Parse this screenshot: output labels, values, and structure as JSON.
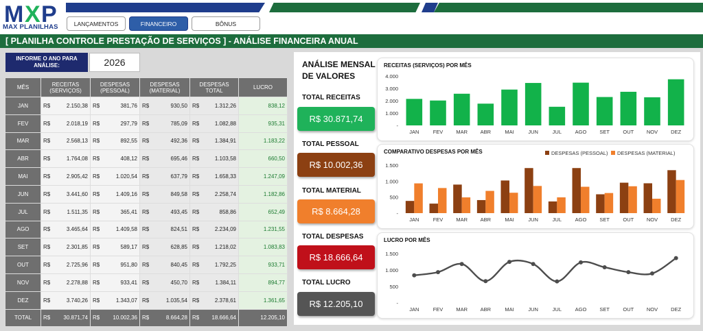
{
  "app": {
    "brand": "MAX PLANILHAS",
    "nav": [
      "LANÇAMENTOS",
      "FINANCEIRO",
      "BÔNUS"
    ],
    "active_nav": 1,
    "title": "[ PLANILHA CONTROLE PRESTAÇÃO DE SERVIÇOS ] - ANÁLISE FINANCEIRA ANUAL"
  },
  "year": {
    "label": "INFORME O ANO PARA ANÁLISE:",
    "value": "2026"
  },
  "table": {
    "headers": [
      "MÊS",
      "RECEITAS (SERVIÇOS)",
      "DESPESAS (PESSOAL)",
      "DESPESAS (MATERIAL)",
      "DESPESAS TOTAL",
      "LUCRO"
    ],
    "currency": "R$",
    "rows": [
      {
        "month": "JAN",
        "receitas": "2.150,38",
        "pessoal": "381,76",
        "material": "930,50",
        "total": "1.312,26",
        "lucro": "838,12"
      },
      {
        "month": "FEV",
        "receitas": "2.018,19",
        "pessoal": "297,79",
        "material": "785,09",
        "total": "1.082,88",
        "lucro": "935,31"
      },
      {
        "month": "MAR",
        "receitas": "2.568,13",
        "pessoal": "892,55",
        "material": "492,36",
        "total": "1.384,91",
        "lucro": "1.183,22"
      },
      {
        "month": "ABR",
        "receitas": "1.764,08",
        "pessoal": "408,12",
        "material": "695,46",
        "total": "1.103,58",
        "lucro": "660,50"
      },
      {
        "month": "MAI",
        "receitas": "2.905,42",
        "pessoal": "1.020,54",
        "material": "637,79",
        "total": "1.658,33",
        "lucro": "1.247,09"
      },
      {
        "month": "JUN",
        "receitas": "3.441,60",
        "pessoal": "1.409,16",
        "material": "849,58",
        "total": "2.258,74",
        "lucro": "1.182,86"
      },
      {
        "month": "JUL",
        "receitas": "1.511,35",
        "pessoal": "365,41",
        "material": "493,45",
        "total": "858,86",
        "lucro": "652,49"
      },
      {
        "month": "AGO",
        "receitas": "3.465,64",
        "pessoal": "1.409,58",
        "material": "824,51",
        "total": "2.234,09",
        "lucro": "1.231,55"
      },
      {
        "month": "SET",
        "receitas": "2.301,85",
        "pessoal": "589,17",
        "material": "628,85",
        "total": "1.218,02",
        "lucro": "1.083,83"
      },
      {
        "month": "OUT",
        "receitas": "2.725,96",
        "pessoal": "951,80",
        "material": "840,45",
        "total": "1.792,25",
        "lucro": "933,71"
      },
      {
        "month": "NOV",
        "receitas": "2.278,88",
        "pessoal": "933,41",
        "material": "450,70",
        "total": "1.384,11",
        "lucro": "894,77"
      },
      {
        "month": "DEZ",
        "receitas": "3.740,26",
        "pessoal": "1.343,07",
        "material": "1.035,54",
        "total": "2.378,61",
        "lucro": "1.361,65"
      }
    ],
    "total": {
      "month": "TOTAL",
      "receitas": "30.871,74",
      "pessoal": "10.002,36",
      "material": "8.664,28",
      "total": "18.666,64",
      "lucro": "12.205,10"
    }
  },
  "analysis": {
    "title_line1": "ANÁLISE MENSAL",
    "title_line2": "DE VALORES",
    "kpis": [
      {
        "label": "TOTAL RECEITAS",
        "value": "R$ 30.871,74",
        "color": "#1fb25a"
      },
      {
        "label": "TOTAL PESSOAL",
        "value": "R$ 10.002,36",
        "color": "#8c4012"
      },
      {
        "label": "TOTAL MATERIAL",
        "value": "R$ 8.664,28",
        "color": "#f07f2c"
      },
      {
        "label": "TOTAL DESPESAS",
        "value": "R$ 18.666,64",
        "color": "#c0101a"
      },
      {
        "label": "TOTAL LUCRO",
        "value": "R$ 12.205,10",
        "color": "#555555"
      }
    ]
  },
  "chart_data": [
    {
      "type": "bar",
      "title": "RECEITAS (SERVIÇOS) POR MÊS",
      "categories": [
        "JAN",
        "FEV",
        "MAR",
        "ABR",
        "MAI",
        "JUN",
        "JUL",
        "AGO",
        "SET",
        "OUT",
        "NOV",
        "DEZ"
      ],
      "values": [
        2150.38,
        2018.19,
        2568.13,
        1764.08,
        2905.42,
        3441.6,
        1511.35,
        3465.64,
        2301.85,
        2725.96,
        2278.88,
        3740.26
      ],
      "yticks": [
        "-",
        "1.000",
        "2.000",
        "3.000",
        "4.000"
      ],
      "ylim": [
        0,
        4000
      ],
      "color": "#12b24a"
    },
    {
      "type": "bar",
      "title": "COMPARATIVO DESPESAS POR MÊS",
      "categories": [
        "JAN",
        "FEV",
        "MAR",
        "ABR",
        "MAI",
        "JUN",
        "JUL",
        "AGO",
        "SET",
        "OUT",
        "NOV",
        "DEZ"
      ],
      "series": [
        {
          "name": "DESPESAS (PESSOAL)",
          "values": [
            381.76,
            297.79,
            892.55,
            408.12,
            1020.54,
            1409.16,
            365.41,
            1409.58,
            589.17,
            951.8,
            933.41,
            1343.07
          ],
          "color": "#8c4012"
        },
        {
          "name": "DESPESAS (MATERIAL)",
          "values": [
            930.5,
            785.09,
            492.36,
            695.46,
            637.79,
            849.58,
            493.45,
            824.51,
            628.85,
            840.45,
            450.7,
            1035.54
          ],
          "color": "#f07f2c"
        }
      ],
      "yticks": [
        "-",
        "500",
        "1.000",
        "1.500"
      ],
      "ylim": [
        0,
        1500
      ],
      "legend": "top-right"
    },
    {
      "type": "line",
      "title": "LUCRO POR MÊS",
      "categories": [
        "JAN",
        "FEV",
        "MAR",
        "ABR",
        "MAI",
        "JUN",
        "JUL",
        "AGO",
        "SET",
        "OUT",
        "NOV",
        "DEZ"
      ],
      "values": [
        838.12,
        935.31,
        1183.22,
        660.5,
        1247.09,
        1182.86,
        652.49,
        1231.55,
        1083.83,
        933.71,
        894.77,
        1361.65
      ],
      "yticks": [
        "-",
        "500",
        "1.000",
        "1.500"
      ],
      "ylim": [
        0,
        1500
      ],
      "color": "#4d4d4d"
    }
  ]
}
